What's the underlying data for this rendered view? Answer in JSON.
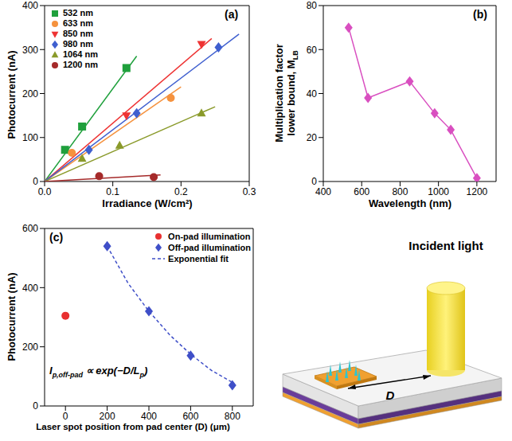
{
  "chart_data": [
    {
      "type": "scatter",
      "title": "(a)",
      "xlabel": "Irradiance (W/cm²)",
      "ylabel": "Photocurrent (nA)",
      "xlim": [
        0,
        0.3
      ],
      "xticks": [
        {
          "value": 0,
          "label": "0.0"
        },
        {
          "value": 0.1,
          "label": "0.1"
        },
        {
          "value": 0.2,
          "label": "0.2"
        },
        {
          "value": 0.3,
          "label": "0.3"
        }
      ],
      "ylim": [
        0,
        400
      ],
      "yticks": [
        0,
        100,
        200,
        300,
        400
      ],
      "legend": "upper left",
      "series": [
        {
          "name": "532 nm",
          "color": "#1fa03c",
          "marker": "square",
          "x": [
            0.03,
            0.055,
            0.12
          ],
          "values": [
            72,
            125,
            258
          ],
          "fit": {
            "x": [
              0,
              0.135
            ],
            "values": [
              0,
              285
            ]
          }
        },
        {
          "name": "633 nm",
          "color": "#f5923e",
          "marker": "circle",
          "x": [
            0.04,
            0.185
          ],
          "values": [
            65,
            190
          ],
          "fit": {
            "x": [
              0,
              0.2
            ],
            "values": [
              0,
              215
            ]
          }
        },
        {
          "name": "850 nm",
          "color": "#ee3333",
          "marker": "triangle-down",
          "x": [
            0.12,
            0.23
          ],
          "values": [
            150,
            312
          ],
          "fit": {
            "x": [
              0,
              0.245
            ],
            "values": [
              0,
              325
            ]
          }
        },
        {
          "name": "980 nm",
          "color": "#3f5fcf",
          "marker": "diamond",
          "x": [
            0.065,
            0.135,
            0.255
          ],
          "values": [
            72,
            155,
            305
          ],
          "fit": {
            "x": [
              0,
              0.285
            ],
            "values": [
              0,
              335
            ]
          }
        },
        {
          "name": "1064 nm",
          "color": "#8a9a2a",
          "marker": "triangle",
          "x": [
            0.055,
            0.11,
            0.23
          ],
          "values": [
            52,
            82,
            155
          ],
          "fit": {
            "x": [
              0,
              0.25
            ],
            "values": [
              0,
              170
            ]
          }
        },
        {
          "name": "1200 nm",
          "color": "#a52a2a",
          "marker": "circle",
          "x": [
            0.08,
            0.16
          ],
          "values": [
            12,
            10
          ],
          "fit": {
            "x": [
              0,
              0.17
            ],
            "values": [
              0,
              15
            ]
          }
        }
      ]
    },
    {
      "type": "line",
      "title": "(b)",
      "xlabel": "Wavelength (nm)",
      "ylabel": [
        "Multiplication factor",
        "lower bound, M"
      ],
      "ylabel_sub": "LB",
      "xlim": [
        400,
        1300
      ],
      "xticks": [
        400,
        600,
        800,
        1000,
        1200
      ],
      "ylim": [
        0,
        80
      ],
      "yticks": [
        0,
        20,
        40,
        60,
        80
      ],
      "color": "#d94fc0",
      "marker": "diamond",
      "x": [
        532,
        633,
        850,
        980,
        1064,
        1200
      ],
      "values": [
        70,
        38,
        45.5,
        31,
        23.5,
        1.5
      ]
    },
    {
      "type": "scatter",
      "title": "(c)",
      "xlabel": "Laser spot position from pad center (D) (μm)",
      "ylabel": "Photocurrent (nA)",
      "xlim": [
        -100,
        900
      ],
      "xticks": [
        0,
        200,
        400,
        600,
        800
      ],
      "ylim": [
        0,
        600
      ],
      "yticks": [
        0,
        200,
        400,
        600
      ],
      "legend": "upper right",
      "annotation": [
        {
          "text": "I"
        },
        {
          "text": "p,off-pad",
          "sub": true
        },
        {
          "text": " ∝ exp(−D/L"
        },
        {
          "text": "p",
          "sub": true
        },
        {
          "text": ")"
        }
      ],
      "series": [
        {
          "name": "On-pad illumination",
          "color": "#e83030",
          "marker": "circle",
          "x": [
            0
          ],
          "values": [
            305
          ]
        },
        {
          "name": "Off-pad illumination",
          "color": "#3f4fc8",
          "marker": "diamond",
          "x": [
            200,
            400,
            600,
            800
          ],
          "values": [
            540,
            320,
            170,
            70
          ]
        },
        {
          "name": "Exponential fit",
          "color": "#3f4fc8",
          "type": "line",
          "line_style": "dashed",
          "x": [
            200,
            300,
            400,
            500,
            600,
            700,
            800
          ],
          "values": [
            540,
            415,
            320,
            240,
            175,
            120,
            80
          ]
        }
      ]
    }
  ],
  "diagram": {
    "beam_label": "Incident light",
    "distance_label": "D"
  }
}
